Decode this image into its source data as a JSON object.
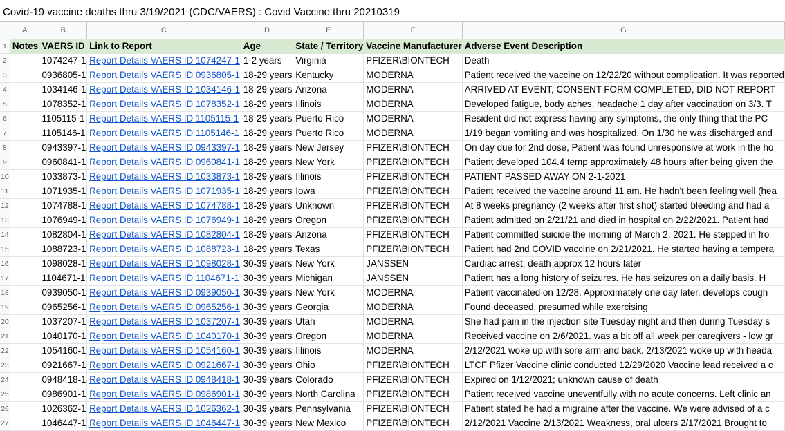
{
  "title": "Covid-19 vaccine deaths thru 3/19/2021 (CDC/VAERS) : Covid Vaccine thru 20210319",
  "column_letters": [
    "A",
    "B",
    "C",
    "D",
    "E",
    "F",
    "G"
  ],
  "header_row": {
    "num": "1",
    "cells": [
      "Notes",
      "VAERS ID",
      "Link to Report",
      "Age",
      "State / Territory",
      "Vaccine Manufacturer",
      "Adverse Event Description"
    ]
  },
  "rows": [
    {
      "num": "2",
      "notes": "",
      "id": "1074247-1",
      "link": "Report Details VAERS ID 1074247-1",
      "age": "1-2 years",
      "state": "Virginia",
      "maker": "PFIZER\\BIONTECH",
      "desc": "Death"
    },
    {
      "num": "3",
      "notes": "",
      "id": "0936805-1",
      "link": "Report Details VAERS ID 0936805-1",
      "age": "18-29 years",
      "state": "Kentucky",
      "maker": "MODERNA",
      "desc": "Patient received the vaccine on 12/22/20 without complication. It was reported"
    },
    {
      "num": "4",
      "notes": "",
      "id": "1034146-1",
      "link": "Report Details VAERS ID 1034146-1",
      "age": "18-29 years",
      "state": "Arizona",
      "maker": "MODERNA",
      "desc": "ARRIVED AT EVENT, CONSENT FORM COMPLETED, DID NOT REPORT"
    },
    {
      "num": "5",
      "notes": "",
      "id": "1078352-1",
      "link": "Report Details VAERS ID 1078352-1",
      "age": "18-29 years",
      "state": "Illinois",
      "maker": "MODERNA",
      "desc": "Developed fatigue, body aches, headache 1 day after vaccination on 3/3. T"
    },
    {
      "num": "6",
      "notes": "",
      "id": "1105115-1",
      "link": "Report Details VAERS ID 1105115-1",
      "age": "18-29 years",
      "state": "Puerto Rico",
      "maker": "MODERNA",
      "desc": "Resident did not express having any symptoms, the only thing that the PC"
    },
    {
      "num": "7",
      "notes": "",
      "id": "1105146-1",
      "link": "Report Details VAERS ID 1105146-1",
      "age": "18-29 years",
      "state": "Puerto Rico",
      "maker": "MODERNA",
      "desc": "1/19 began vomiting and was hospitalized. On 1/30 he was discharged and"
    },
    {
      "num": "8",
      "notes": "",
      "id": "0943397-1",
      "link": "Report Details VAERS ID 0943397-1",
      "age": "18-29 years",
      "state": "New Jersey",
      "maker": "PFIZER\\BIONTECH",
      "desc": "On day due for 2nd dose, Patient was found unresponsive at work in the ho"
    },
    {
      "num": "9",
      "notes": "",
      "id": "0960841-1",
      "link": "Report Details VAERS ID 0960841-1",
      "age": "18-29 years",
      "state": "New York",
      "maker": "PFIZER\\BIONTECH",
      "desc": "Patient developed 104.4 temp approximately 48 hours after being given the"
    },
    {
      "num": "10",
      "notes": "",
      "id": "1033873-1",
      "link": "Report Details VAERS ID 1033873-1",
      "age": "18-29 years",
      "state": "Illinois",
      "maker": "PFIZER\\BIONTECH",
      "desc": "PATIENT PASSED AWAY ON 2-1-2021"
    },
    {
      "num": "11",
      "notes": "",
      "id": "1071935-1",
      "link": "Report Details VAERS ID 1071935-1",
      "age": "18-29 years",
      "state": "Iowa",
      "maker": "PFIZER\\BIONTECH",
      "desc": "Patient received the vaccine around 11 am. He hadn't been feeling well (hea"
    },
    {
      "num": "12",
      "notes": "",
      "id": "1074788-1",
      "link": "Report Details VAERS ID 1074788-1",
      "age": "18-29 years",
      "state": "Unknown",
      "maker": "PFIZER\\BIONTECH",
      "desc": "At 8 weeks pregnancy (2 weeks after first shot) started bleeding and had a"
    },
    {
      "num": "13",
      "notes": "",
      "id": "1076949-1",
      "link": "Report Details VAERS ID 1076949-1",
      "age": "18-29 years",
      "state": "Oregon",
      "maker": "PFIZER\\BIONTECH",
      "desc": "Patient admitted on 2/21/21 and died in hospital on 2/22/2021. Patient had"
    },
    {
      "num": "14",
      "notes": "",
      "id": "1082804-1",
      "link": "Report Details VAERS ID 1082804-1",
      "age": "18-29 years",
      "state": "Arizona",
      "maker": "PFIZER\\BIONTECH",
      "desc": "Patient committed suicide the morning of March 2, 2021. He stepped in fro"
    },
    {
      "num": "15",
      "notes": "",
      "id": "1088723-1",
      "link": "Report Details VAERS ID 1088723-1",
      "age": "18-29 years",
      "state": "Texas",
      "maker": "PFIZER\\BIONTECH",
      "desc": "Patient had 2nd COVID vaccine on 2/21/2021. He started having a tempera"
    },
    {
      "num": "16",
      "notes": "",
      "id": "1098028-1",
      "link": "Report Details VAERS ID 1098028-1",
      "age": "30-39 years",
      "state": "New York",
      "maker": "JANSSEN",
      "desc": "Cardiac arrest, death approx 12 hours later"
    },
    {
      "num": "17",
      "notes": "",
      "id": "1104671-1",
      "link": "Report Details VAERS ID 1104671-1",
      "age": "30-39 years",
      "state": "Michigan",
      "maker": "JANSSEN",
      "desc": "Patient has a long history of seizures. He has seizures on a daily basis. H"
    },
    {
      "num": "18",
      "notes": "",
      "id": "0939050-1",
      "link": "Report Details VAERS ID 0939050-1",
      "age": "30-39 years",
      "state": "New York",
      "maker": "MODERNA",
      "desc": "Patient vaccinated on 12/28. Approximately one day later, develops cough"
    },
    {
      "num": "19",
      "notes": "",
      "id": "0965256-1",
      "link": "Report Details VAERS ID 0965256-1",
      "age": "30-39 years",
      "state": "Georgia",
      "maker": "MODERNA",
      "desc": "Found deceased, presumed while exercising"
    },
    {
      "num": "20",
      "notes": "",
      "id": "1037207-1",
      "link": "Report Details VAERS ID 1037207-1",
      "age": "30-39 years",
      "state": "Utah",
      "maker": "MODERNA",
      "desc": "She had pain in the injection site Tuesday night and then during Tuesday s"
    },
    {
      "num": "21",
      "notes": "",
      "id": "1040170-1",
      "link": "Report Details VAERS ID 1040170-1",
      "age": "30-39 years",
      "state": "Oregon",
      "maker": "MODERNA",
      "desc": "Received vaccine on 2/6/2021. was a bit off all week per caregivers - low gr"
    },
    {
      "num": "22",
      "notes": "",
      "id": "1054160-1",
      "link": "Report Details VAERS ID 1054160-1",
      "age": "30-39 years",
      "state": "Illinois",
      "maker": "MODERNA",
      "desc": "2/12/2021 woke up with sore arm and back. 2/13/2021 woke up with heada"
    },
    {
      "num": "23",
      "notes": "",
      "id": "0921667-1",
      "link": "Report Details VAERS ID 0921667-1",
      "age": "30-39 years",
      "state": "Ohio",
      "maker": "PFIZER\\BIONTECH",
      "desc": "LTCF Pfizer Vaccine clinic conducted 12/29/2020 Vaccine lead received a c"
    },
    {
      "num": "24",
      "notes": "",
      "id": "0948418-1",
      "link": "Report Details VAERS ID 0948418-1",
      "age": "30-39 years",
      "state": "Colorado",
      "maker": "PFIZER\\BIONTECH",
      "desc": "Expired on 1/12/2021; unknown cause of death"
    },
    {
      "num": "25",
      "notes": "",
      "id": "0986901-1",
      "link": "Report Details VAERS ID 0986901-1",
      "age": "30-39 years",
      "state": "North Carolina",
      "maker": "PFIZER\\BIONTECH",
      "desc": "Patient received vaccine uneventfully with no acute concerns. Left clinic an"
    },
    {
      "num": "26",
      "notes": "",
      "id": "1026362-1",
      "link": "Report Details VAERS ID 1026362-1",
      "age": "30-39 years",
      "state": "Pennsylvania",
      "maker": "PFIZER\\BIONTECH",
      "desc": "Patient stated he had a migraine after the vaccine. We were advised of a c"
    },
    {
      "num": "27",
      "notes": "",
      "id": "1046447-1",
      "link": "Report Details VAERS ID 1046447-1",
      "age": "30-39 years",
      "state": "New Mexico",
      "maker": "PFIZER\\BIONTECH",
      "desc": "2/12/2021 Vaccine 2/13/2021 Weakness, oral ulcers 2/17/2021 Brought to"
    }
  ]
}
